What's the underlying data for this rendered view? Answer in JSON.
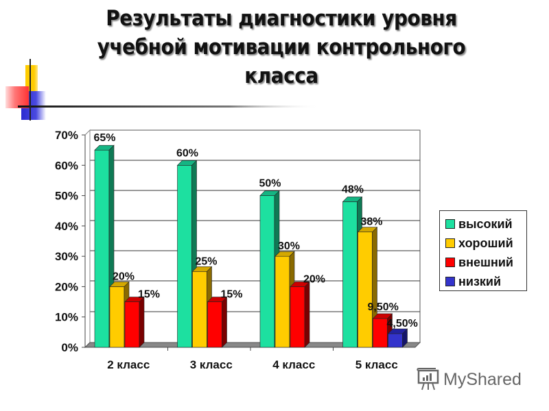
{
  "title": {
    "line1": "Результаты диагностики уровня",
    "line2": "учебной мотивации контрольного",
    "line3": "класса"
  },
  "watermark": {
    "text": "MyShared",
    "icon": "presentation-chart-icon"
  },
  "colors": {
    "high": "#1de0a0",
    "good": "#ffcc00",
    "external": "#ff0000",
    "low": "#3333cc"
  },
  "chart_data": {
    "type": "bar",
    "title": "Результаты диагностики уровня учебной мотивации контрольного класса",
    "xlabel": "",
    "ylabel": "",
    "categories": [
      "2 класс",
      "3 класс",
      "4 класс",
      "5 класс"
    ],
    "series": [
      {
        "name": "высокий",
        "values": [
          65,
          60,
          50,
          48
        ],
        "labels": [
          "65%",
          "60%",
          "50%",
          "48%"
        ]
      },
      {
        "name": "хороший",
        "values": [
          20,
          25,
          30,
          38
        ],
        "labels": [
          "20%",
          "25%",
          "30%",
          "38%"
        ]
      },
      {
        "name": "внешний",
        "values": [
          15,
          15,
          20,
          9.5
        ],
        "labels": [
          "15%",
          "15%",
          "20%",
          "9,50%"
        ]
      },
      {
        "name": "низкий",
        "values": [
          null,
          null,
          null,
          4.5
        ],
        "labels": [
          "",
          "",
          "",
          "4,50%"
        ]
      }
    ],
    "yticks": [
      "0%",
      "10%",
      "20%",
      "30%",
      "40%",
      "50%",
      "60%",
      "70%"
    ],
    "ylim": [
      0,
      70
    ],
    "grid": true,
    "legend_position": "right",
    "style": "3d clustered column"
  },
  "legend": [
    {
      "label": "высокий",
      "color": "#1de0a0"
    },
    {
      "label": "хороший",
      "color": "#ffcc00"
    },
    {
      "label": "внешний",
      "color": "#ff0000"
    },
    {
      "label": "низкий",
      "color": "#3333cc"
    }
  ]
}
